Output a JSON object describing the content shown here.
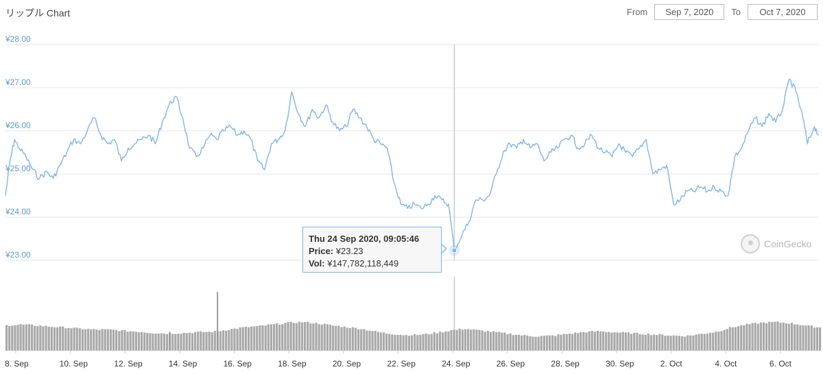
{
  "header": {
    "title": "リップル Chart",
    "from_label": "From",
    "from_value": "Sep 7, 2020",
    "to_label": "To",
    "to_value": "Oct 7, 2020"
  },
  "tooltip": {
    "date": "Thu 24 Sep 2020, 09:05:46",
    "price_label": "Price:",
    "price_value": "¥23.23",
    "vol_label": "Vol:",
    "vol_value": "¥147,782,118,449"
  },
  "watermark": "CoinGecko",
  "colors": {
    "line": "#7cb5ec",
    "volume": "#9a9a9a",
    "grid": "#e6e6e6",
    "tick": "#5b9bd5"
  },
  "chart_data": {
    "type": "line",
    "title": "リップル Chart",
    "y_unit": "¥",
    "ylim": [
      23,
      28
    ],
    "y_ticks": [
      "¥23.00",
      "¥24.00",
      "¥25.00",
      "¥26.00",
      "¥27.00",
      "¥28.00"
    ],
    "x_ticks": [
      "8. Sep",
      "10. Sep",
      "12. Sep",
      "14. Sep",
      "16. Sep",
      "18. Sep",
      "20. Sep",
      "22. Sep",
      "24. Sep",
      "26. Sep",
      "28. Sep",
      "30. Sep",
      "2. Oct",
      "4. Oct",
      "6. Oct"
    ],
    "xlim": [
      "2020-09-07T22:00",
      "2020-10-07T18:00"
    ],
    "grid": true,
    "series": [
      {
        "values": [
          [
            "2020-09-07T22:00",
            24.5
          ],
          [
            "2020-09-08T02:00",
            25.3
          ],
          [
            "2020-09-08T06:00",
            25.8
          ],
          [
            "2020-09-08T10:00",
            25.6
          ],
          [
            "2020-09-08T16:00",
            25.4
          ],
          [
            "2020-09-08T22:00",
            25.1
          ],
          [
            "2020-09-09T04:00",
            24.9
          ],
          [
            "2020-09-09T10:00",
            25.05
          ],
          [
            "2020-09-09T16:00",
            24.9
          ],
          [
            "2020-09-09T22:00",
            25.2
          ],
          [
            "2020-09-10T04:00",
            25.5
          ],
          [
            "2020-09-10T10:00",
            25.8
          ],
          [
            "2020-09-10T16:00",
            25.7
          ],
          [
            "2020-09-10T22:00",
            26.0
          ],
          [
            "2020-09-11T04:00",
            26.3
          ],
          [
            "2020-09-11T10:00",
            25.9
          ],
          [
            "2020-09-11T16:00",
            25.7
          ],
          [
            "2020-09-11T22:00",
            25.8
          ],
          [
            "2020-09-12T04:00",
            25.3
          ],
          [
            "2020-09-12T10:00",
            25.6
          ],
          [
            "2020-09-12T16:00",
            25.7
          ],
          [
            "2020-09-12T22:00",
            25.8
          ],
          [
            "2020-09-13T04:00",
            25.9
          ],
          [
            "2020-09-13T10:00",
            25.7
          ],
          [
            "2020-09-13T16:00",
            26.2
          ],
          [
            "2020-09-13T22:00",
            26.6
          ],
          [
            "2020-09-14T04:00",
            26.8
          ],
          [
            "2020-09-14T10:00",
            26.3
          ],
          [
            "2020-09-14T16:00",
            25.6
          ],
          [
            "2020-09-14T22:00",
            25.4
          ],
          [
            "2020-09-15T04:00",
            25.6
          ],
          [
            "2020-09-15T10:00",
            25.9
          ],
          [
            "2020-09-15T16:00",
            25.8
          ],
          [
            "2020-09-15T22:00",
            26.0
          ],
          [
            "2020-09-16T04:00",
            26.1
          ],
          [
            "2020-09-16T10:00",
            25.9
          ],
          [
            "2020-09-16T16:00",
            26.0
          ],
          [
            "2020-09-16T22:00",
            25.8
          ],
          [
            "2020-09-17T04:00",
            25.3
          ],
          [
            "2020-09-17T10:00",
            25.1
          ],
          [
            "2020-09-17T16:00",
            25.7
          ],
          [
            "2020-09-17T22:00",
            25.8
          ],
          [
            "2020-09-18T04:00",
            26.0
          ],
          [
            "2020-09-18T10:00",
            26.9
          ],
          [
            "2020-09-18T16:00",
            26.4
          ],
          [
            "2020-09-18T22:00",
            26.1
          ],
          [
            "2020-09-19T04:00",
            26.5
          ],
          [
            "2020-09-19T10:00",
            26.3
          ],
          [
            "2020-09-19T16:00",
            26.6
          ],
          [
            "2020-09-19T22:00",
            26.2
          ],
          [
            "2020-09-20T04:00",
            26.0
          ],
          [
            "2020-09-20T10:00",
            26.1
          ],
          [
            "2020-09-20T16:00",
            26.5
          ],
          [
            "2020-09-20T22:00",
            26.3
          ],
          [
            "2020-09-21T04:00",
            26.1
          ],
          [
            "2020-09-21T10:00",
            25.8
          ],
          [
            "2020-09-21T16:00",
            25.7
          ],
          [
            "2020-09-21T22:00",
            25.6
          ],
          [
            "2020-09-22T04:00",
            24.8
          ],
          [
            "2020-09-22T10:00",
            24.3
          ],
          [
            "2020-09-22T16:00",
            24.2
          ],
          [
            "2020-09-22T22:00",
            24.3
          ],
          [
            "2020-09-23T04:00",
            24.2
          ],
          [
            "2020-09-23T10:00",
            24.3
          ],
          [
            "2020-09-23T16:00",
            24.5
          ],
          [
            "2020-09-23T22:00",
            24.4
          ],
          [
            "2020-09-24T04:00",
            24.3
          ],
          [
            "2020-09-24T09:05",
            23.23
          ],
          [
            "2020-09-24T16:00",
            23.6
          ],
          [
            "2020-09-24T22:00",
            23.9
          ],
          [
            "2020-09-25T04:00",
            24.4
          ],
          [
            "2020-09-25T10:00",
            24.4
          ],
          [
            "2020-09-25T16:00",
            24.5
          ],
          [
            "2020-09-25T22:00",
            25.0
          ],
          [
            "2020-09-26T04:00",
            25.5
          ],
          [
            "2020-09-26T10:00",
            25.7
          ],
          [
            "2020-09-26T16:00",
            25.6
          ],
          [
            "2020-09-26T22:00",
            25.8
          ],
          [
            "2020-09-27T04:00",
            25.6
          ],
          [
            "2020-09-27T10:00",
            25.7
          ],
          [
            "2020-09-27T16:00",
            25.3
          ],
          [
            "2020-09-27T22:00",
            25.5
          ],
          [
            "2020-09-28T04:00",
            25.6
          ],
          [
            "2020-09-28T10:00",
            25.8
          ],
          [
            "2020-09-28T16:00",
            25.9
          ],
          [
            "2020-09-28T22:00",
            25.6
          ],
          [
            "2020-09-29T04:00",
            25.7
          ],
          [
            "2020-09-29T10:00",
            25.9
          ],
          [
            "2020-09-29T16:00",
            25.6
          ],
          [
            "2020-09-29T22:00",
            25.5
          ],
          [
            "2020-09-30T04:00",
            25.4
          ],
          [
            "2020-09-30T10:00",
            25.7
          ],
          [
            "2020-09-30T16:00",
            25.5
          ],
          [
            "2020-09-30T22:00",
            25.4
          ],
          [
            "2020-10-01T04:00",
            25.6
          ],
          [
            "2020-10-01T10:00",
            25.8
          ],
          [
            "2020-10-01T16:00",
            25.0
          ],
          [
            "2020-10-01T22:00",
            25.1
          ],
          [
            "2020-10-02T04:00",
            25.2
          ],
          [
            "2020-10-02T10:00",
            24.3
          ],
          [
            "2020-10-02T16:00",
            24.4
          ],
          [
            "2020-10-02T22:00",
            24.6
          ],
          [
            "2020-10-03T04:00",
            24.6
          ],
          [
            "2020-10-03T10:00",
            24.7
          ],
          [
            "2020-10-03T16:00",
            24.6
          ],
          [
            "2020-10-03T22:00",
            24.7
          ],
          [
            "2020-10-04T04:00",
            24.6
          ],
          [
            "2020-10-04T10:00",
            24.5
          ],
          [
            "2020-10-04T16:00",
            25.4
          ],
          [
            "2020-10-04T22:00",
            25.6
          ],
          [
            "2020-10-05T04:00",
            26.0
          ],
          [
            "2020-10-05T10:00",
            26.3
          ],
          [
            "2020-10-05T16:00",
            26.1
          ],
          [
            "2020-10-05T22:00",
            26.4
          ],
          [
            "2020-10-06T04:00",
            26.2
          ],
          [
            "2020-10-06T10:00",
            26.5
          ],
          [
            "2020-10-06T16:00",
            27.2
          ],
          [
            "2020-10-06T22:00",
            26.9
          ],
          [
            "2020-10-07T04:00",
            26.3
          ],
          [
            "2020-10-07T08:00",
            25.7
          ],
          [
            "2020-10-07T14:00",
            26.1
          ],
          [
            "2020-10-07T18:00",
            25.9
          ]
        ]
      }
    ],
    "volume": {
      "values_relative": [
        0.6,
        0.62,
        0.6,
        0.57,
        0.55,
        0.52,
        0.5,
        0.5,
        0.47,
        0.45,
        0.42,
        0.41,
        0.42,
        0.44,
        0.45,
        0.5,
        0.55,
        0.58,
        0.62,
        0.66,
        0.68,
        0.65,
        0.6,
        0.56,
        0.52,
        0.45,
        0.4,
        0.37,
        0.38,
        0.42,
        0.48,
        0.52,
        0.48,
        0.44,
        0.4,
        0.36,
        0.34,
        0.36,
        0.4,
        0.44,
        0.46,
        0.44,
        0.42,
        0.4,
        0.38,
        0.36,
        0.35,
        0.4,
        0.45,
        0.55,
        0.62,
        0.66,
        0.68,
        0.65,
        0.6,
        0.55
      ],
      "spikes": [
        [
          "2020-09-13T22:00",
          0.32
        ],
        [
          "2020-09-15T16:00",
          1.0
        ]
      ]
    },
    "tooltip_point": [
      "2020-09-24T09:05",
      23.23
    ]
  }
}
